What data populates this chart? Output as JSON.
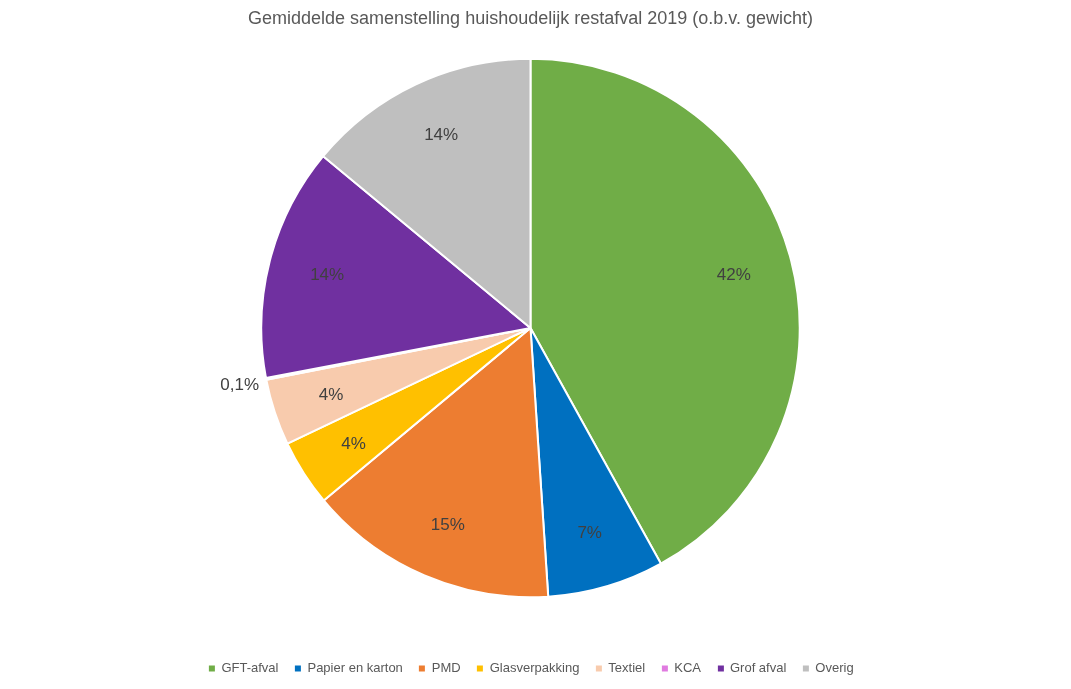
{
  "chart_data": {
    "type": "pie",
    "title": "Gemiddelde samenstelling huishoudelijk restafval 2019 (o.b.v. gewicht)",
    "categories": [
      "GFT-afval",
      "Papier en karton",
      "PMD",
      "Glasverpakking",
      "Textiel",
      "KCA",
      "Grof afval",
      "Overig"
    ],
    "values": [
      42,
      7,
      15,
      4,
      4,
      0.1,
      14,
      14
    ],
    "colors": [
      "#70ad47",
      "#0070c0",
      "#ed7d31",
      "#ffc000",
      "#f8cbad",
      "#e07be0",
      "#7030a0",
      "#bfbfbf"
    ],
    "value_labels": [
      "42%",
      "7%",
      "15%",
      "4%",
      "4%",
      "0,1%",
      "14%",
      "14%"
    ],
    "legend": "bottom"
  }
}
